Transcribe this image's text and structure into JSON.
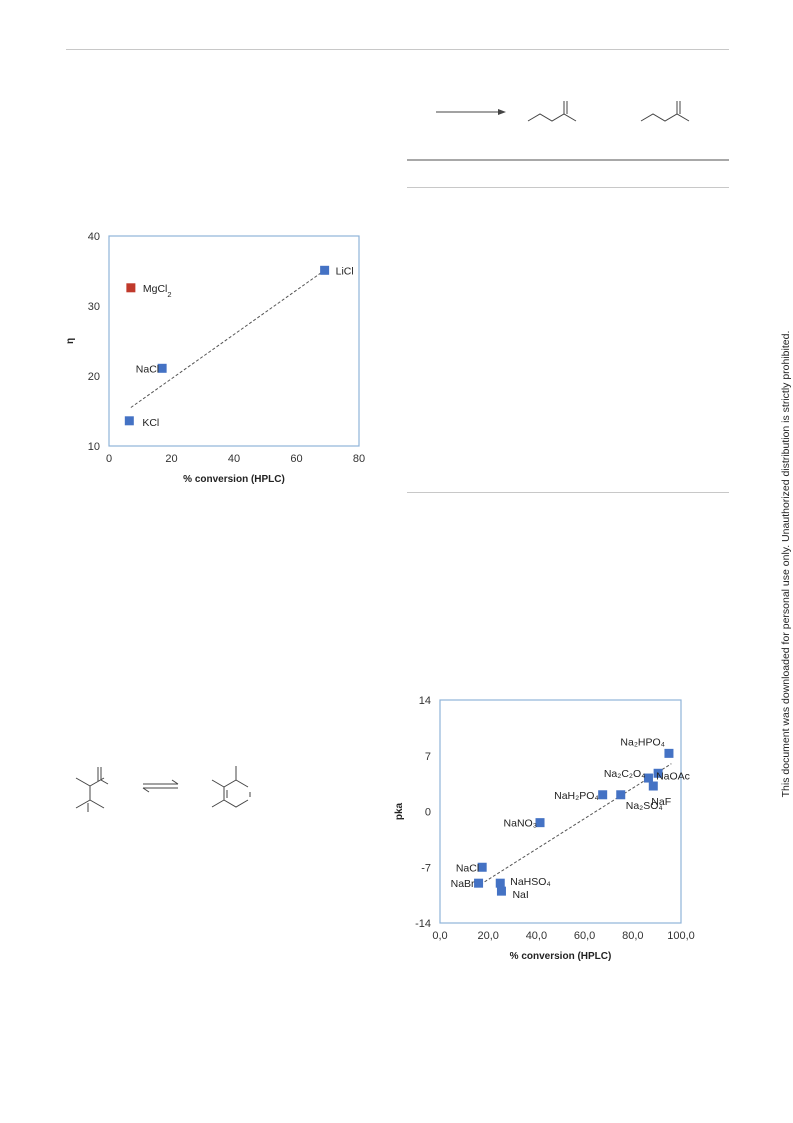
{
  "side_note": "This document was downloaded for personal use only. Unauthorized distribution is strictly prohibited.",
  "colors": {
    "marker_blue": "#4472c4",
    "marker_red": "#c0392b",
    "plot_border": "#8fb3d9",
    "trend": "#555555"
  },
  "chart_data": [
    {
      "type": "scatter",
      "xlabel": "% conversion (HPLC)",
      "ylabel": "η",
      "xlim": [
        0,
        80
      ],
      "ylim": [
        10,
        40
      ],
      "xticks": [
        "0",
        "20",
        "40",
        "60",
        "80"
      ],
      "yticks": [
        "10",
        "20",
        "30",
        "40"
      ],
      "trendline": {
        "x": [
          7,
          69
        ],
        "y": [
          15.5,
          35.1
        ]
      },
      "points": [
        {
          "label": "LiCl",
          "x": 69,
          "y": 35.1,
          "color": "blue"
        },
        {
          "label": "MgCl",
          "sub": "2",
          "x": 7,
          "y": 32.6,
          "color": "red"
        },
        {
          "label": "NaCl",
          "x": 17,
          "y": 21.1,
          "color": "blue"
        },
        {
          "label": "KCl",
          "x": 6.5,
          "y": 13.6,
          "color": "blue"
        }
      ]
    },
    {
      "type": "scatter",
      "xlabel": "% conversion (HPLC)",
      "ylabel": "pka",
      "xlim": [
        0,
        100
      ],
      "ylim": [
        -14,
        14
      ],
      "xticks": [
        "0,0",
        "20,0",
        "40,0",
        "60,0",
        "80,0",
        "100,0"
      ],
      "yticks": [
        "-14",
        "-7",
        "0",
        "7",
        "14"
      ],
      "trendline": {
        "x": [
          15,
          96
        ],
        "y": [
          -9.5,
          6
        ]
      },
      "points": [
        {
          "label": "Na₂HPO₄",
          "x": 95,
          "y": 7.3
        },
        {
          "label": "Na₂C₂O₄",
          "x": 86.5,
          "y": 4.2
        },
        {
          "label": "NaOAc",
          "x": 90.5,
          "y": 4.8
        },
        {
          "label": "NaF",
          "x": 88.5,
          "y": 3.2
        },
        {
          "label": "Na₂SO₄",
          "x": 75,
          "y": 2.1
        },
        {
          "label": "NaH₂PO₄",
          "x": 67.5,
          "y": 2.1
        },
        {
          "label": "NaNO₃",
          "x": 41.5,
          "y": -1.4
        },
        {
          "label": "NaCl",
          "x": 17.5,
          "y": -7
        },
        {
          "label": "NaBr",
          "x": 16,
          "y": -9
        },
        {
          "label": "NaHSO₄",
          "x": 25,
          "y": -9
        },
        {
          "label": "NaI",
          "x": 25.5,
          "y": -10
        }
      ]
    }
  ]
}
